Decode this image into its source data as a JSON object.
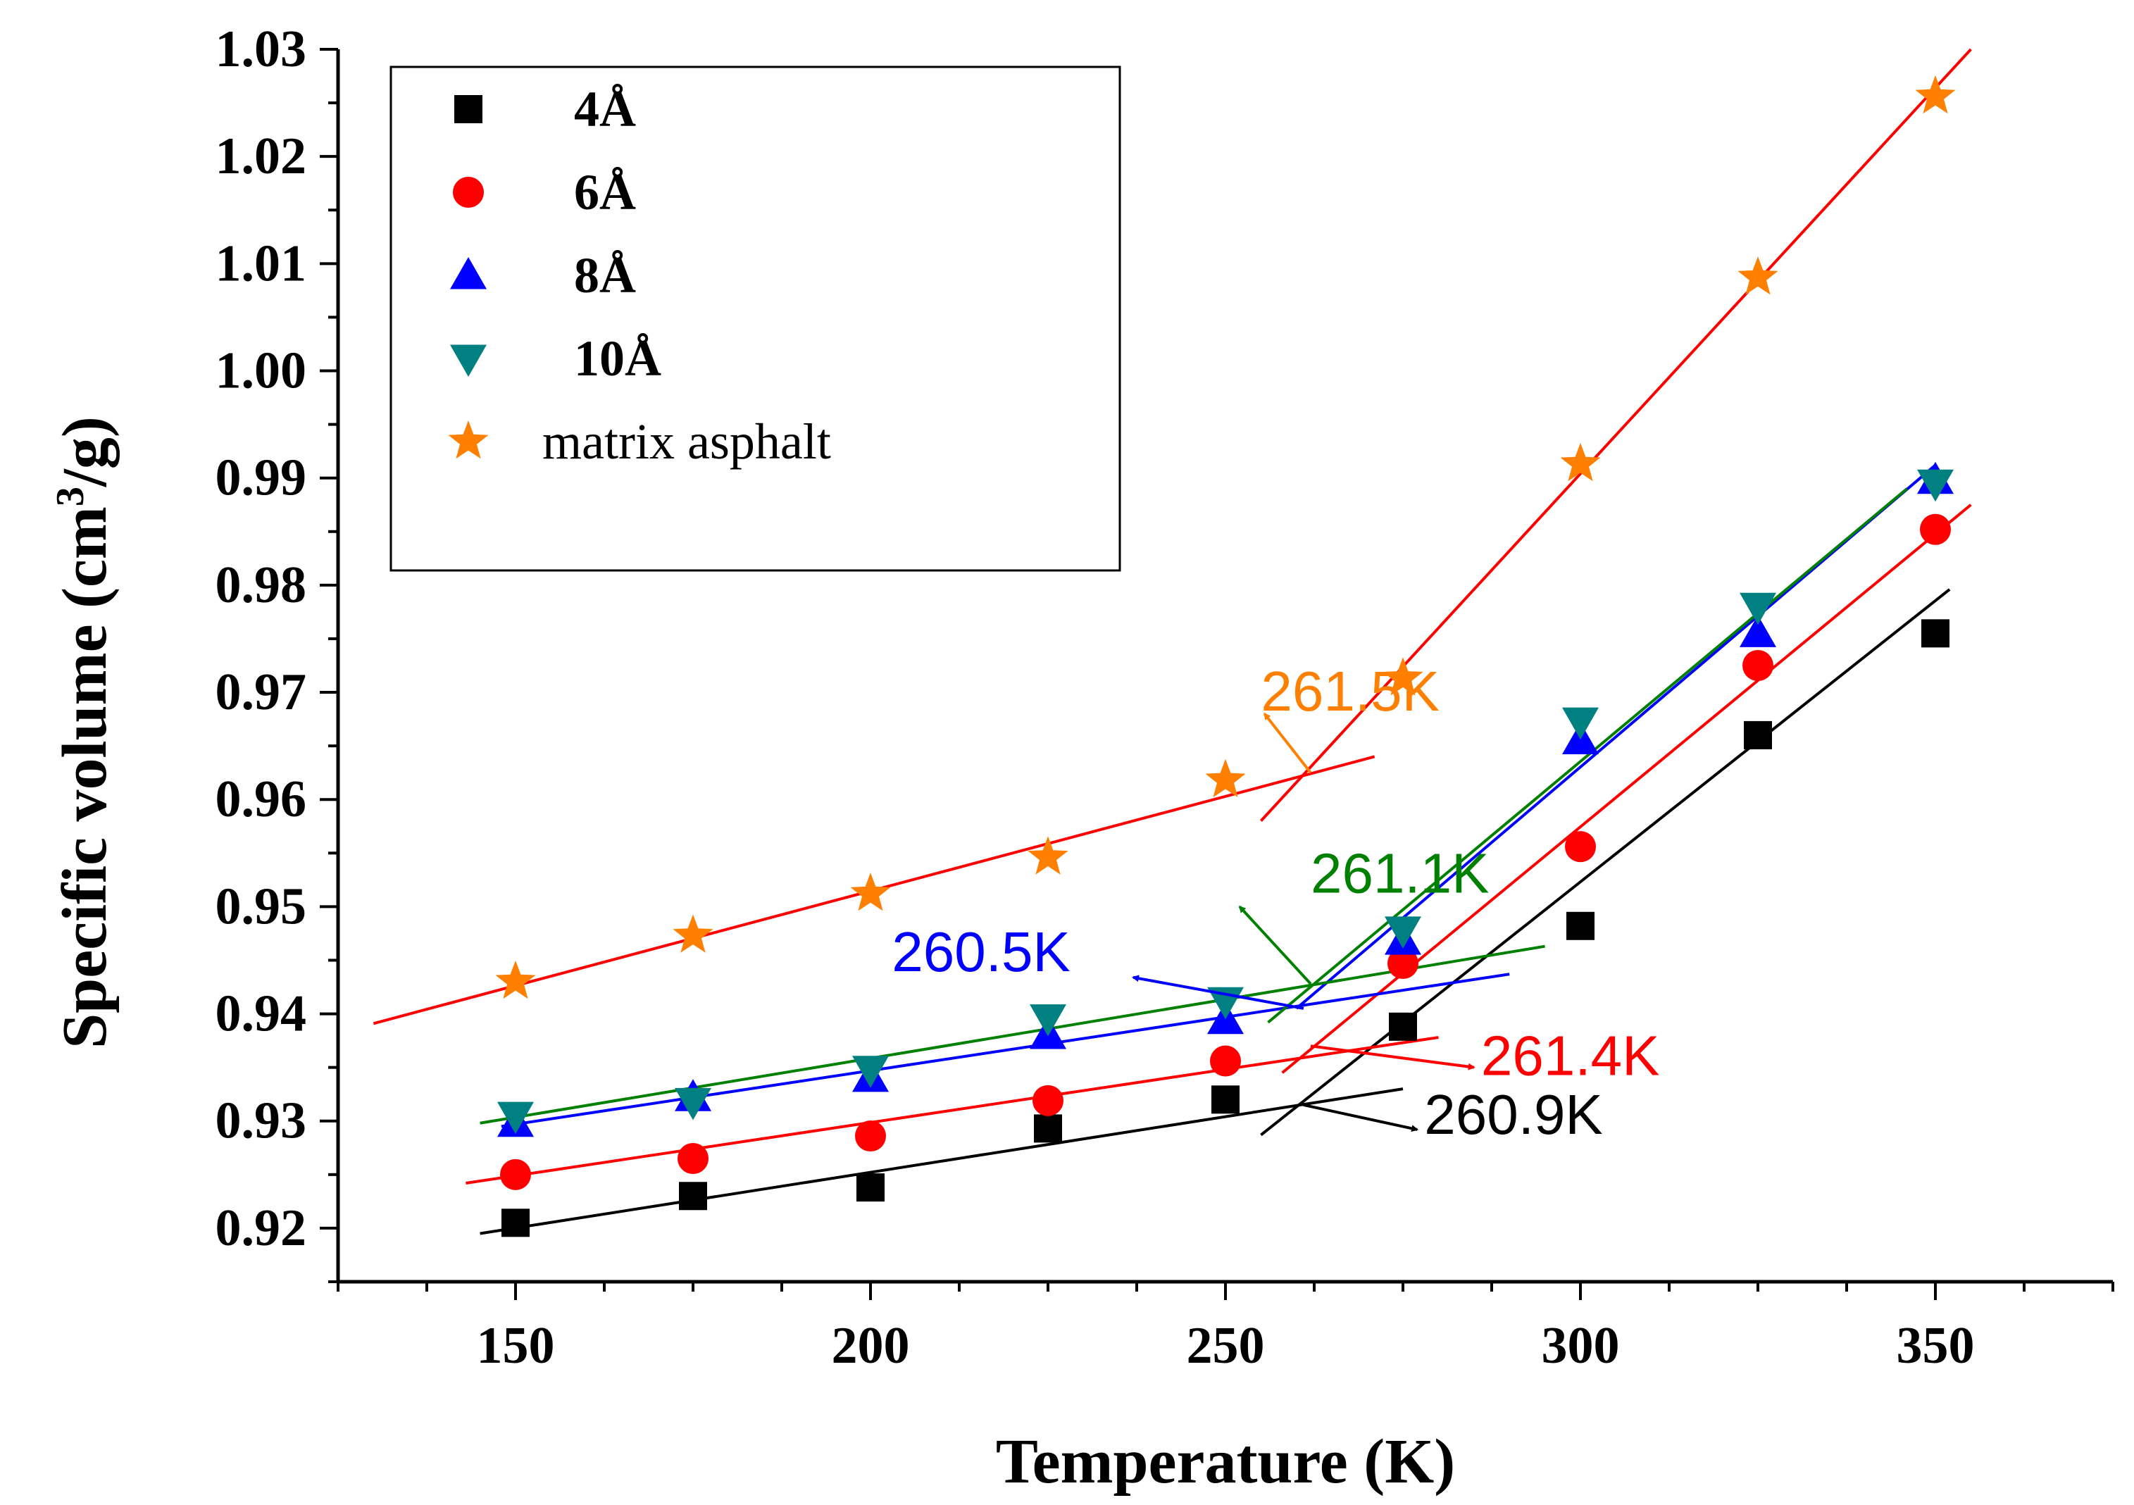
{
  "chart_data": {
    "type": "scatter",
    "title": "",
    "xlabel": "Temperature (K)",
    "ylabel": "Specific volume (cm³/g)",
    "ylabel_parts": {
      "before": "Specific volume (cm",
      "sup": "3",
      "after": "/g)"
    },
    "xlim": [
      125,
      375
    ],
    "ylim": [
      0.915,
      1.03
    ],
    "x_ticks": [
      150,
      200,
      250,
      300,
      350
    ],
    "x_tick_labels": [
      "150",
      "200",
      "250",
      "300",
      "350"
    ],
    "y_ticks": [
      0.92,
      0.93,
      0.94,
      0.95,
      0.96,
      0.97,
      0.98,
      0.99,
      1.0,
      1.01,
      1.02,
      1.03
    ],
    "y_tick_labels": [
      "0.92",
      "0.93",
      "0.94",
      "0.95",
      "0.96",
      "0.97",
      "0.98",
      "0.99",
      "1.00",
      "1.01",
      "1.02",
      "1.03"
    ],
    "grid": false,
    "legend_position": "top-left",
    "series": [
      {
        "name": "4Å",
        "marker": "square",
        "color": "#000000",
        "line_color": "#000000",
        "x": [
          150,
          175,
          200,
          225,
          250,
          275,
          300,
          325,
          350
        ],
        "y": [
          0.9205,
          0.923,
          0.9238,
          0.9293,
          0.932,
          0.9388,
          0.9482,
          0.966,
          0.9755
        ],
        "fit_lines": [
          {
            "x": [
              145,
              275
            ],
            "y": [
              0.9195,
              0.933
            ]
          },
          {
            "x": [
              255,
              352
            ],
            "y": [
              0.9287,
              0.9796
            ]
          }
        ]
      },
      {
        "name": "6Å",
        "marker": "circle",
        "color": "#ff0000",
        "line_color": "#ff0000",
        "x": [
          150,
          175,
          200,
          225,
          250,
          275,
          300,
          325,
          350
        ],
        "y": [
          0.925,
          0.9265,
          0.9286,
          0.9319,
          0.9356,
          0.9447,
          0.9556,
          0.9725,
          0.9852
        ],
        "fit_lines": [
          {
            "x": [
              143,
              280
            ],
            "y": [
              0.9242,
              0.9378
            ]
          },
          {
            "x": [
              258,
              355
            ],
            "y": [
              0.9345,
              0.9875
            ]
          }
        ]
      },
      {
        "name": "8Å",
        "marker": "triangle-up",
        "color": "#0000ff",
        "line_color": "#0000ff",
        "x": [
          150,
          175,
          200,
          225,
          250,
          275,
          300,
          325,
          350
        ],
        "y": [
          0.9298,
          0.9322,
          0.934,
          0.938,
          0.9394,
          0.9468,
          0.9655,
          0.9755,
          0.9898
        ],
        "fit_lines": [
          {
            "x": [
              148,
              290
            ],
            "y": [
              0.9295,
              0.9437
            ]
          },
          {
            "x": [
              260,
              350
            ],
            "y": [
              0.9405,
              0.9912
            ]
          }
        ]
      },
      {
        "name": "10Å",
        "marker": "triangle-down",
        "color": "#008080",
        "line_color": "#008000",
        "x": [
          150,
          175,
          200,
          225,
          250,
          275,
          300,
          325,
          350
        ],
        "y": [
          0.9305,
          0.9318,
          0.9348,
          0.9396,
          0.9412,
          0.9478,
          0.9673,
          0.978,
          0.9895
        ],
        "fit_lines": [
          {
            "x": [
              145,
              295
            ],
            "y": [
              0.9298,
              0.9463
            ]
          },
          {
            "x": [
              256,
              346
            ],
            "y": [
              0.9392,
              0.989
            ]
          }
        ]
      },
      {
        "name": "matrix asphalt",
        "marker": "star",
        "color": "#ff8000",
        "line_color": "#ff0000",
        "x": [
          150,
          175,
          200,
          225,
          250,
          275,
          300,
          325,
          350
        ],
        "y": [
          0.943,
          0.9473,
          0.9512,
          0.9546,
          0.9618,
          0.9713,
          0.9913,
          1.0087,
          1.0256
        ],
        "fit_lines": [
          {
            "x": [
              130,
              271
            ],
            "y": [
              0.9391,
              0.964
            ]
          },
          {
            "x": [
              255,
              355
            ],
            "y": [
              0.958,
              1.03
            ]
          }
        ]
      }
    ],
    "annotations": [
      {
        "text": "261.5K",
        "color": "#ff8000",
        "x": 255,
        "y": 0.97,
        "arrow_from": [
          262,
          0.9625
        ],
        "arrow_to": [
          255.5,
          0.968
        ]
      },
      {
        "text": "261.1K",
        "color": "#008000",
        "x": 262,
        "y": 0.953,
        "arrow_from": [
          262,
          0.9428
        ],
        "arrow_to": [
          252,
          0.95
        ]
      },
      {
        "text": "260.5K",
        "color": "#0000ff",
        "x": 203,
        "y": 0.9457,
        "arrow_from": [
          261,
          0.9405
        ],
        "arrow_to": [
          237,
          0.9434
        ]
      },
      {
        "text": "261.4K",
        "color": "#ff0000",
        "x": 286,
        "y": 0.936,
        "arrow_from": [
          262,
          0.937
        ],
        "arrow_to": [
          285,
          0.935
        ]
      },
      {
        "text": "260.9K",
        "color": "#000000",
        "x": 278,
        "y": 0.9305,
        "arrow_from": [
          261,
          0.9315
        ],
        "arrow_to": [
          277,
          0.9292
        ]
      }
    ]
  }
}
